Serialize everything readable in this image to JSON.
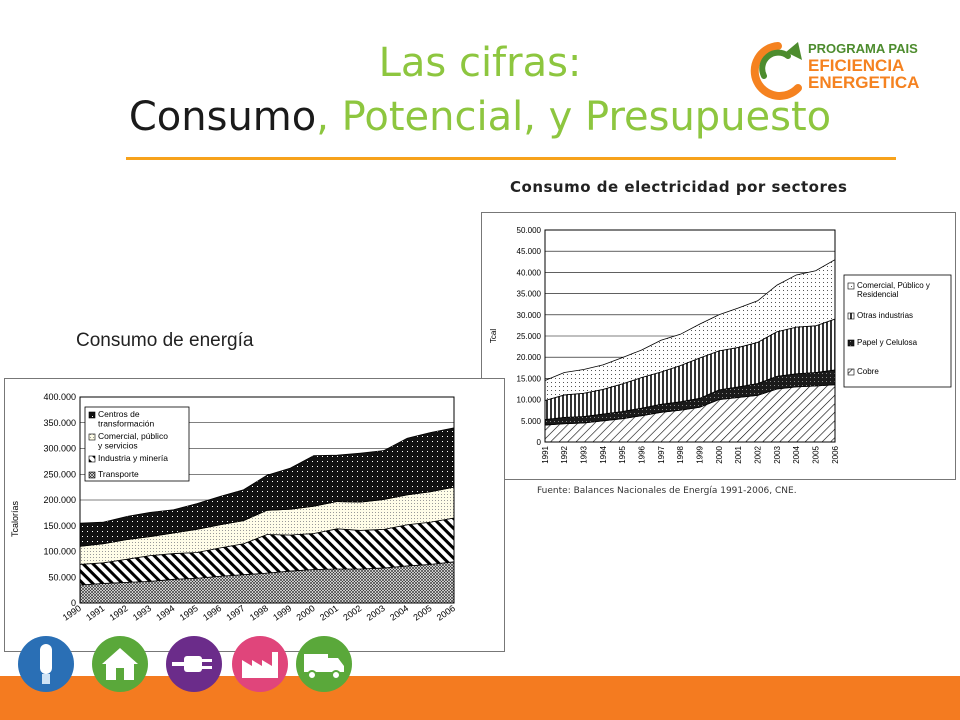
{
  "header": {
    "title_line1": "Las cifras:",
    "title_line2_a": "Consumo",
    "title_line2_b": ", Potencial, y Presupuesto"
  },
  "logo": {
    "line1": "PROGRAMA PAIS",
    "line2": "EFICIENCIA",
    "line3": "ENERGETICA"
  },
  "labels": {
    "electricity_title": "Consumo de electricidad por sectores",
    "energy_title": "Consumo de energía",
    "source": "Fuente: Balances Nacionales de Energía 1991-2006, CNE."
  },
  "colors": {
    "accent_orange": "#f47b20",
    "title_green": "#8dc63f",
    "rule": "#f7a21b"
  },
  "footer_icons": [
    "lightbulb-icon",
    "house-icon",
    "plug-icon",
    "factory-icon",
    "truck-icon"
  ],
  "chart_data": [
    {
      "type": "area",
      "stacked": true,
      "ylabel": "Tcal",
      "ylim": [
        0,
        50000
      ],
      "yticks": [
        "0",
        "5.000",
        "10.000",
        "15.000",
        "20.000",
        "25.000",
        "30.000",
        "35.000",
        "40.000",
        "45.000",
        "50.000"
      ],
      "legend_position": "right",
      "grid": true,
      "x": [
        "1991",
        "1992",
        "1993",
        "1994",
        "1995",
        "1996",
        "1997",
        "1998",
        "1999",
        "2000",
        "2001",
        "2002",
        "2003",
        "2004",
        "2005",
        "2006"
      ],
      "series": [
        {
          "name": "Cobre",
          "values": [
            4000,
            4300,
            4500,
            5000,
            5500,
            6200,
            7000,
            7500,
            8200,
            10000,
            10500,
            11000,
            12500,
            13000,
            13200,
            13500
          ]
        },
        {
          "name": "Papel y Celulosa",
          "values": [
            1300,
            1500,
            1500,
            1600,
            1700,
            1800,
            1900,
            2000,
            2100,
            2300,
            2500,
            2800,
            3000,
            3100,
            3200,
            3500
          ]
        },
        {
          "name": "Otras industrias",
          "values": [
            4500,
            5300,
            5500,
            5800,
            6500,
            7200,
            7600,
            8500,
            9500,
            9200,
            9300,
            9700,
            10500,
            11000,
            11000,
            12000
          ]
        },
        {
          "name": "Comercial, Público y Residencial",
          "values": [
            4700,
            5300,
            5600,
            5800,
            6200,
            6500,
            7500,
            7400,
            8000,
            8500,
            9300,
            9800,
            11000,
            12300,
            13000,
            14000
          ]
        }
      ],
      "source": "Fuente: Balances Nacionales de Energía 1991-2006, CNE."
    },
    {
      "type": "area",
      "stacked": true,
      "ylabel": "Tcalorías",
      "ylim": [
        0,
        400000
      ],
      "yticks": [
        "0",
        "50.000",
        "100.000",
        "150.000",
        "200.000",
        "250.000",
        "300.000",
        "350.000",
        "400.000"
      ],
      "legend_position": "top-left",
      "grid": true,
      "x": [
        "1990",
        "1991",
        "1992",
        "1993",
        "1994",
        "1995",
        "1996",
        "1997",
        "1998",
        "1999",
        "2000",
        "2001",
        "2002",
        "2003",
        "2004",
        "2005",
        "2006"
      ],
      "series": [
        {
          "name": "Transporte",
          "values": [
            35000,
            38000,
            40000,
            42000,
            46000,
            48000,
            52000,
            55000,
            58000,
            62000,
            65000,
            66000,
            66000,
            68000,
            72000,
            75000,
            80000
          ]
        },
        {
          "name": "Industria y minería",
          "values": [
            40000,
            40000,
            45000,
            50000,
            50000,
            50000,
            55000,
            60000,
            75000,
            70000,
            70000,
            78000,
            75000,
            75000,
            80000,
            82000,
            85000
          ]
        },
        {
          "name": "Comercial, público y servicios",
          "values": [
            35000,
            37000,
            38000,
            37000,
            40000,
            45000,
            45000,
            45000,
            47000,
            50000,
            53000,
            53000,
            55000,
            58000,
            58000,
            59000,
            60000
          ]
        },
        {
          "name": "Centros de transformación",
          "values": [
            45000,
            42000,
            45000,
            47000,
            45000,
            50000,
            55000,
            60000,
            68000,
            80000,
            98000,
            90000,
            95000,
            95000,
            110000,
            115000,
            115000
          ]
        }
      ]
    }
  ]
}
